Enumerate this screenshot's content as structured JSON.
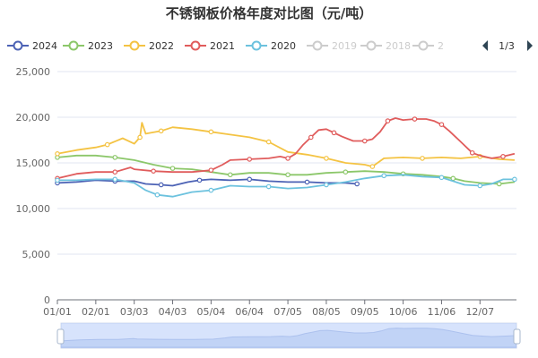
{
  "chart_data": {
    "type": "line",
    "title": "不锈钢板价格年度对比图（元/吨）",
    "xlabel": "",
    "ylabel": "",
    "x_ticks": [
      "01/01",
      "02/01",
      "03/03",
      "04/03",
      "05/04",
      "06/04",
      "07/05",
      "08/05",
      "09/05",
      "10/06",
      "11/06",
      "12/07"
    ],
    "y_ticks": [
      "0",
      "5,000",
      "10,000",
      "15,000",
      "20,000",
      "25,000"
    ],
    "ylim": [
      0,
      25000
    ],
    "grid": true,
    "legend_position": "top",
    "legend_page": "1/3",
    "legend_visible_entries": [
      {
        "name": "2024",
        "color": "#4c62b5",
        "active": true
      },
      {
        "name": "2023",
        "color": "#8cc76a",
        "active": true
      },
      {
        "name": "2022",
        "color": "#f4c343",
        "active": true
      },
      {
        "name": "2021",
        "color": "#e05c5c",
        "active": true
      },
      {
        "name": "2020",
        "color": "#6cc2de",
        "active": true
      },
      {
        "name": "2019",
        "color": "#cccccc",
        "active": false
      },
      {
        "name": "2018",
        "color": "#cccccc",
        "active": false
      },
      {
        "name": "2",
        "color": "#cccccc",
        "active": false
      }
    ],
    "series": [
      {
        "name": "2024",
        "color": "#4c62b5",
        "points": [
          [
            0,
            12800
          ],
          [
            0.5,
            12900
          ],
          [
            1,
            13100
          ],
          [
            1.5,
            13000
          ],
          [
            2,
            13000
          ],
          [
            2.3,
            12700
          ],
          [
            2.7,
            12600
          ],
          [
            3,
            12500
          ],
          [
            3.4,
            12900
          ],
          [
            3.7,
            13100
          ],
          [
            4,
            13200
          ],
          [
            4.5,
            13100
          ],
          [
            5,
            13200
          ],
          [
            5.5,
            13000
          ],
          [
            6,
            12900
          ],
          [
            6.5,
            12900
          ],
          [
            7,
            12800
          ],
          [
            7.5,
            12800
          ],
          [
            7.8,
            12700
          ]
        ]
      },
      {
        "name": "2023",
        "color": "#8cc76a",
        "points": [
          [
            0,
            15600
          ],
          [
            0.5,
            15800
          ],
          [
            1,
            15800
          ],
          [
            1.5,
            15600
          ],
          [
            2,
            15300
          ],
          [
            2.5,
            14800
          ],
          [
            3,
            14400
          ],
          [
            3.5,
            14300
          ],
          [
            4,
            14000
          ],
          [
            4.5,
            13700
          ],
          [
            5,
            13900
          ],
          [
            5.5,
            13900
          ],
          [
            6,
            13700
          ],
          [
            6.5,
            13700
          ],
          [
            7,
            13900
          ],
          [
            7.5,
            14000
          ],
          [
            8,
            14100
          ],
          [
            8.5,
            14000
          ],
          [
            9,
            13800
          ],
          [
            9.5,
            13700
          ],
          [
            10,
            13500
          ],
          [
            10.3,
            13300
          ],
          [
            10.6,
            13000
          ],
          [
            11,
            12800
          ],
          [
            11.5,
            12700
          ],
          [
            11.9,
            12900
          ]
        ]
      },
      {
        "name": "2022",
        "color": "#f4c343",
        "points": [
          [
            0,
            16000
          ],
          [
            0.5,
            16400
          ],
          [
            1,
            16700
          ],
          [
            1.3,
            17000
          ],
          [
            1.7,
            17700
          ],
          [
            2,
            17100
          ],
          [
            2.15,
            17800
          ],
          [
            2.2,
            19400
          ],
          [
            2.3,
            18200
          ],
          [
            2.7,
            18500
          ],
          [
            3,
            18900
          ],
          [
            3.5,
            18700
          ],
          [
            4,
            18400
          ],
          [
            4.5,
            18100
          ],
          [
            5,
            17800
          ],
          [
            5.5,
            17300
          ],
          [
            6,
            16200
          ],
          [
            6.5,
            15900
          ],
          [
            7,
            15500
          ],
          [
            7.5,
            15000
          ],
          [
            8,
            14800
          ],
          [
            8.2,
            14600
          ],
          [
            8.5,
            15500
          ],
          [
            9,
            15600
          ],
          [
            9.5,
            15500
          ],
          [
            10,
            15600
          ],
          [
            10.5,
            15500
          ],
          [
            11,
            15700
          ],
          [
            11.5,
            15400
          ],
          [
            11.9,
            15300
          ]
        ]
      },
      {
        "name": "2021",
        "color": "#e05c5c",
        "points": [
          [
            0,
            13300
          ],
          [
            0.5,
            13800
          ],
          [
            1,
            14000
          ],
          [
            1.5,
            14000
          ],
          [
            1.9,
            14500
          ],
          [
            2,
            14300
          ],
          [
            2.5,
            14100
          ],
          [
            3,
            14000
          ],
          [
            3.5,
            14000
          ],
          [
            4,
            14200
          ],
          [
            4.3,
            14800
          ],
          [
            4.5,
            15300
          ],
          [
            5,
            15400
          ],
          [
            5.5,
            15500
          ],
          [
            5.8,
            15700
          ],
          [
            6,
            15500
          ],
          [
            6.2,
            16000
          ],
          [
            6.4,
            17000
          ],
          [
            6.6,
            17800
          ],
          [
            6.8,
            18600
          ],
          [
            7,
            18700
          ],
          [
            7.2,
            18300
          ],
          [
            7.4,
            17900
          ],
          [
            7.7,
            17400
          ],
          [
            8,
            17400
          ],
          [
            8.2,
            17600
          ],
          [
            8.4,
            18400
          ],
          [
            8.6,
            19600
          ],
          [
            8.8,
            19900
          ],
          [
            9,
            19700
          ],
          [
            9.3,
            19800
          ],
          [
            9.6,
            19800
          ],
          [
            9.8,
            19600
          ],
          [
            10,
            19200
          ],
          [
            10.2,
            18500
          ],
          [
            10.5,
            17300
          ],
          [
            10.8,
            16100
          ],
          [
            11,
            15800
          ],
          [
            11.3,
            15500
          ],
          [
            11.6,
            15700
          ],
          [
            11.9,
            16000
          ]
        ]
      },
      {
        "name": "2020",
        "color": "#6cc2de",
        "points": [
          [
            0,
            13100
          ],
          [
            0.5,
            13100
          ],
          [
            1,
            13200
          ],
          [
            1.5,
            13200
          ],
          [
            2,
            12800
          ],
          [
            2.3,
            12000
          ],
          [
            2.6,
            11500
          ],
          [
            3,
            11300
          ],
          [
            3.5,
            11800
          ],
          [
            4,
            12000
          ],
          [
            4.5,
            12500
          ],
          [
            5,
            12400
          ],
          [
            5.5,
            12400
          ],
          [
            6,
            12200
          ],
          [
            6.5,
            12300
          ],
          [
            7,
            12600
          ],
          [
            7.5,
            12900
          ],
          [
            8,
            13300
          ],
          [
            8.5,
            13600
          ],
          [
            9,
            13700
          ],
          [
            9.5,
            13500
          ],
          [
            10,
            13400
          ],
          [
            10.3,
            13000
          ],
          [
            10.6,
            12600
          ],
          [
            11,
            12500
          ],
          [
            11.3,
            12700
          ],
          [
            11.6,
            13200
          ],
          [
            11.9,
            13200
          ]
        ]
      }
    ]
  },
  "slider": {
    "start_fraction": 0,
    "end_fraction": 1
  }
}
